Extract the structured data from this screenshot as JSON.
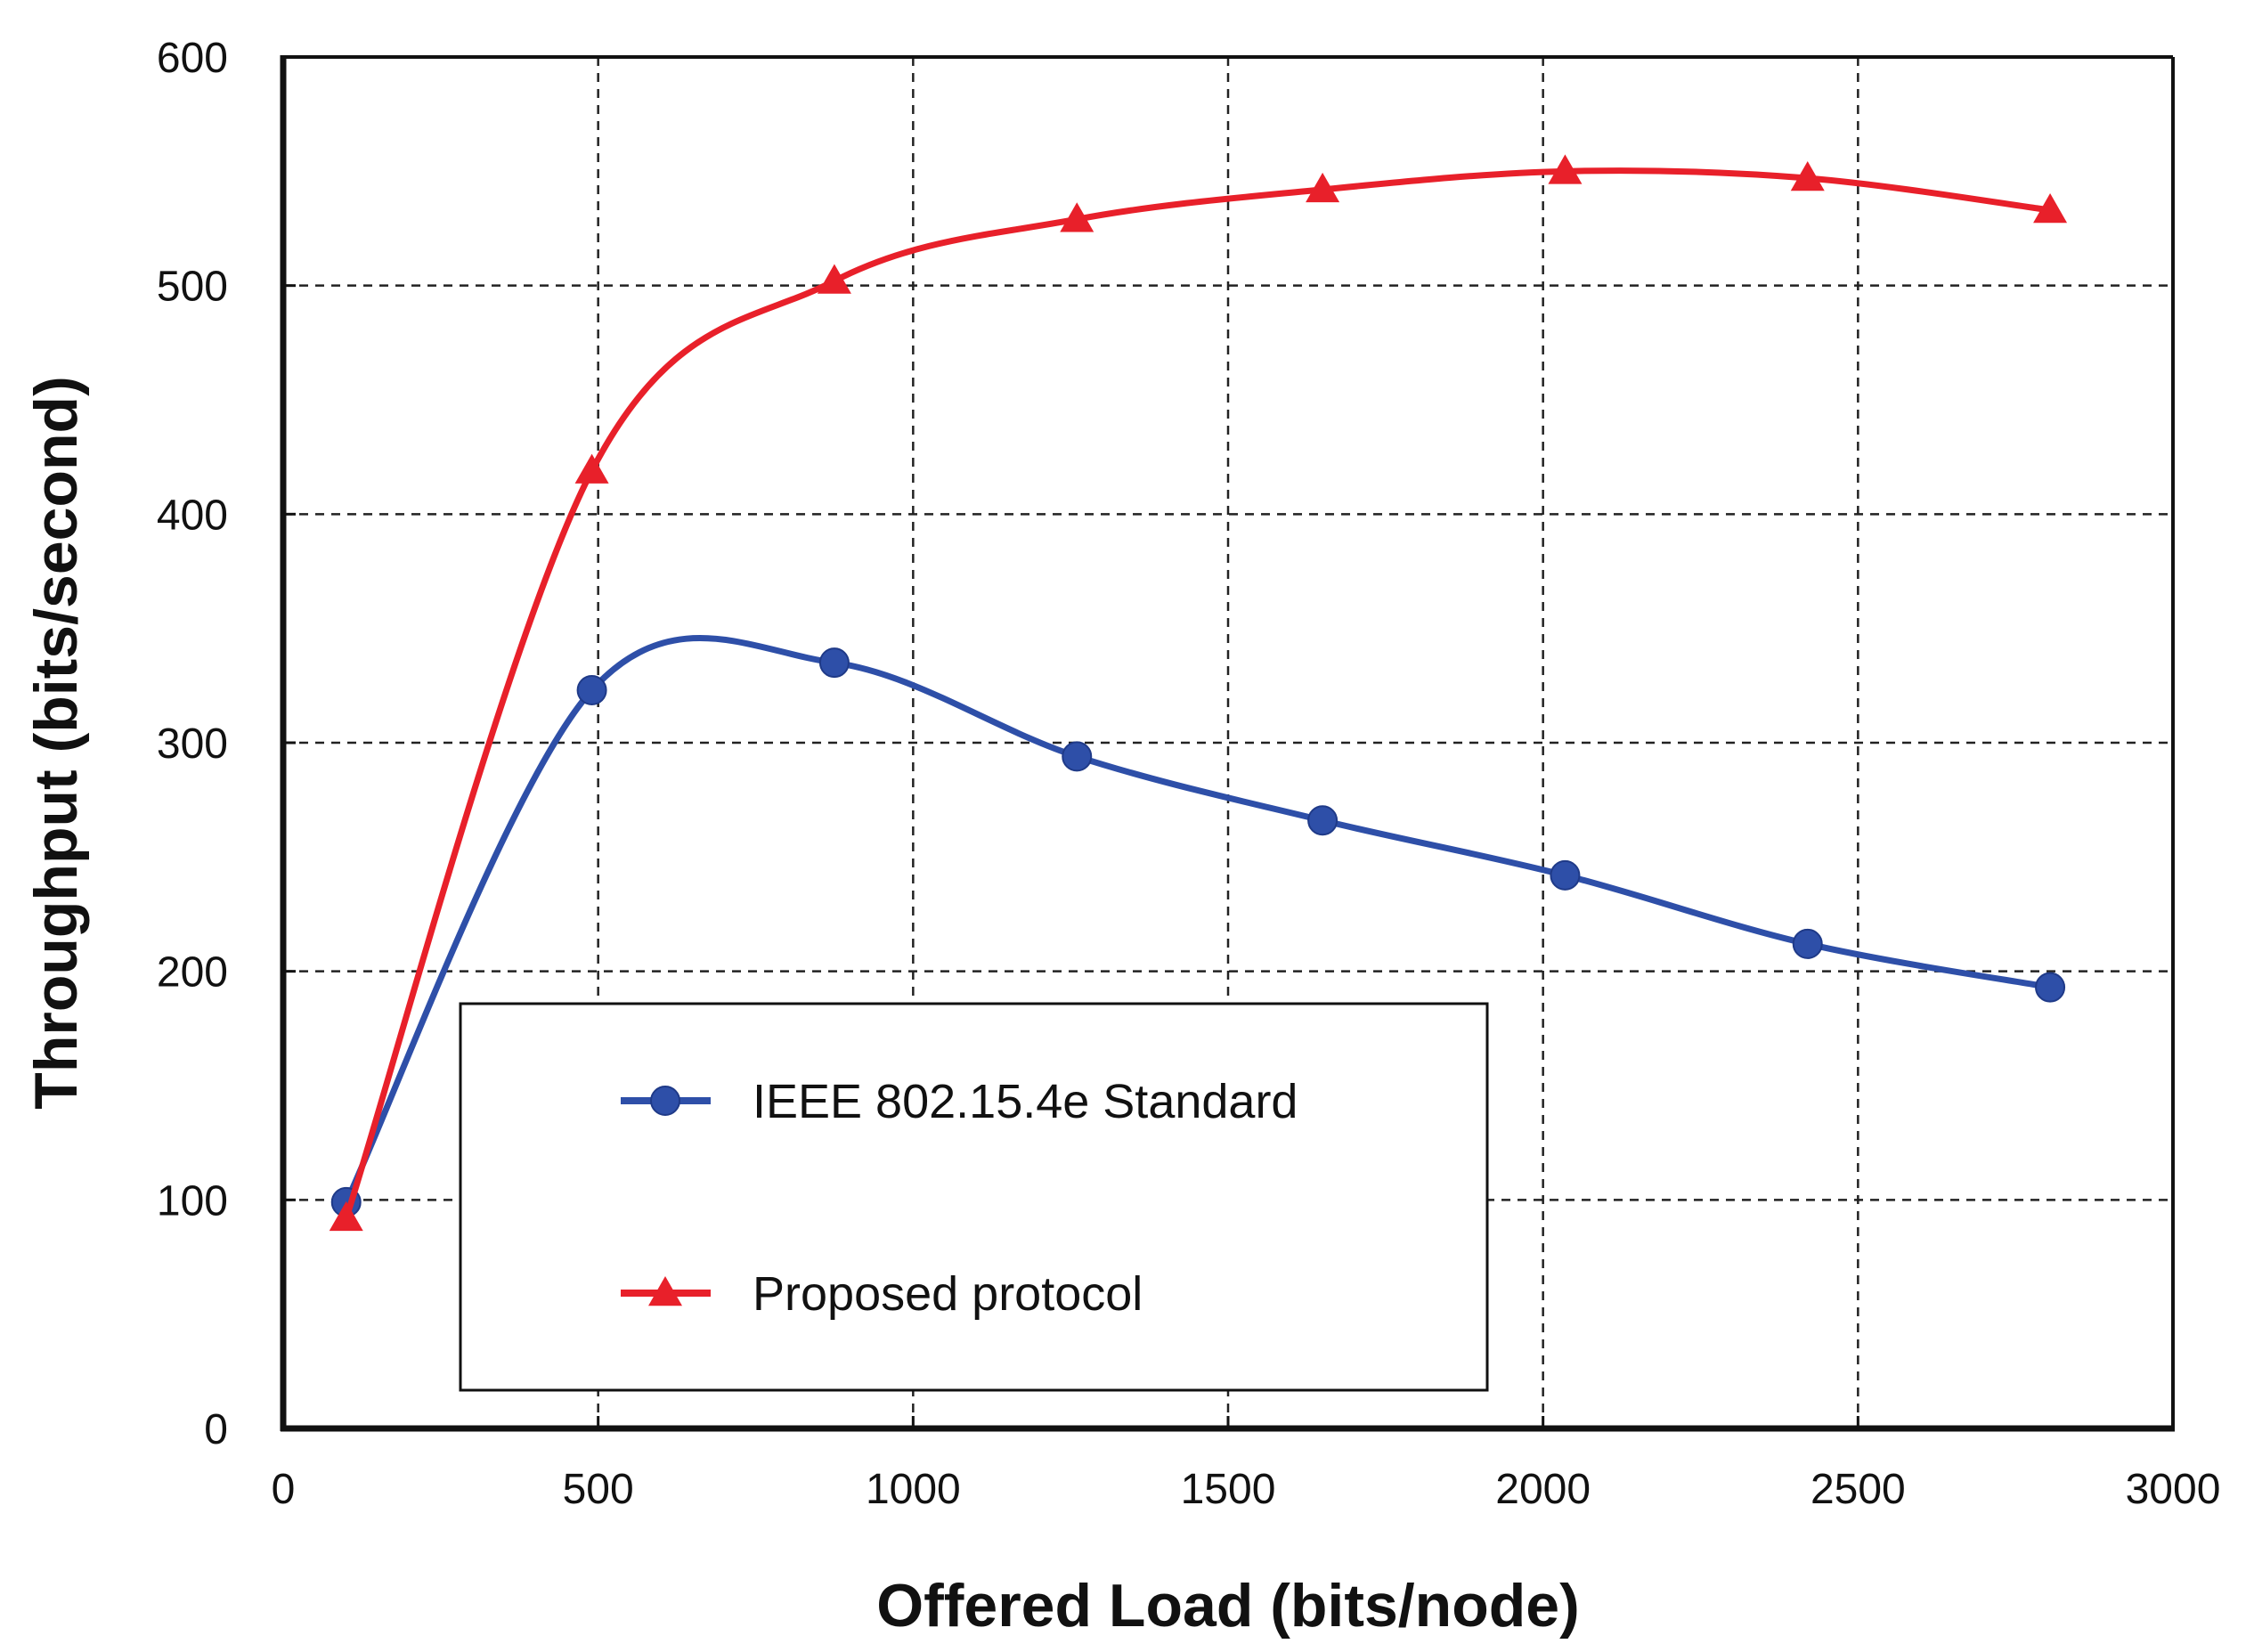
{
  "chart_data": {
    "type": "line",
    "title": "",
    "xlabel": "Offered Load  (bits/node)",
    "ylabel": "Throughput (bits/second)",
    "xlim": [
      0,
      3000
    ],
    "ylim": [
      0,
      600
    ],
    "xticks": [
      0,
      500,
      1000,
      1500,
      2000,
      2500,
      3000
    ],
    "yticks": [
      0,
      100,
      200,
      300,
      400,
      500,
      600
    ],
    "grid": "dashed",
    "legend_position": "bottom-center",
    "series": [
      {
        "name": "IEEE 802.15.4e Standard",
        "marker": "circle",
        "color": "#2e4fa8",
        "x": [
          100,
          490,
          875,
          1260,
          1650,
          2035,
          2420,
          2805
        ],
        "y": [
          99,
          323,
          335,
          294,
          266,
          242,
          212,
          193
        ]
      },
      {
        "name": "Proposed protocol",
        "marker": "triangle",
        "color": "#e8202a",
        "x": [
          100,
          490,
          875,
          1260,
          1650,
          2035,
          2420,
          2805
        ],
        "y": [
          92,
          419,
          502,
          529,
          542,
          550,
          547,
          533
        ]
      }
    ]
  }
}
